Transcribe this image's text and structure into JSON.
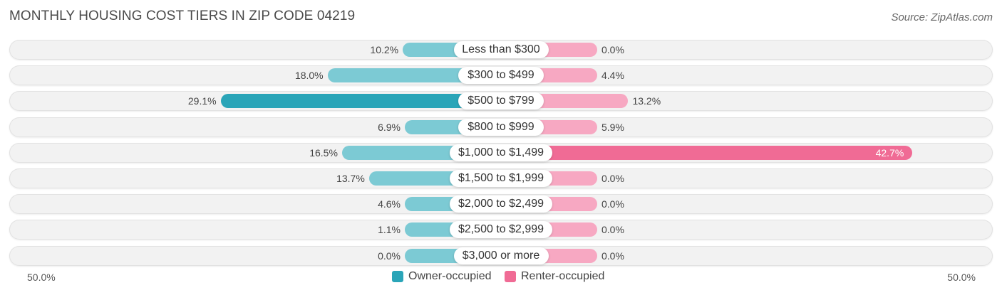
{
  "title": "MONTHLY HOUSING COST TIERS IN ZIP CODE 04219",
  "source": "Source: ZipAtlas.com",
  "colors": {
    "owner": "#7ccad4",
    "owner_strong": "#2aa5b8",
    "renter": "#f7a8c2",
    "renter_strong": "#f06b95"
  },
  "legend": {
    "owner_label": "Owner-occupied",
    "renter_label": "Renter-occupied"
  },
  "axis": {
    "left_label": "50.0%",
    "right_label": "50.0%"
  },
  "chart_data": {
    "type": "bar",
    "orientation": "diverging-horizontal",
    "title": "MONTHLY HOUSING COST TIERS IN ZIP CODE 04219",
    "xlim": [
      -50,
      50
    ],
    "categories": [
      "Less than $300",
      "$300 to $499",
      "$500 to $799",
      "$800 to $999",
      "$1,000 to $1,499",
      "$1,500 to $1,999",
      "$2,000 to $2,499",
      "$2,500 to $2,999",
      "$3,000 or more"
    ],
    "series": [
      {
        "name": "Owner-occupied",
        "values": [
          10.2,
          18.0,
          29.1,
          6.9,
          16.5,
          13.7,
          4.6,
          1.1,
          0.0
        ],
        "labels": [
          "10.2%",
          "18.0%",
          "29.1%",
          "6.9%",
          "16.5%",
          "13.7%",
          "4.6%",
          "1.1%",
          "0.0%"
        ]
      },
      {
        "name": "Renter-occupied",
        "values": [
          0.0,
          4.4,
          13.2,
          5.9,
          42.7,
          0.0,
          0.0,
          0.0,
          0.0
        ],
        "labels": [
          "0.0%",
          "4.4%",
          "13.2%",
          "5.9%",
          "42.7%",
          "0.0%",
          "0.0%",
          "0.0%",
          "0.0%"
        ]
      }
    ]
  }
}
